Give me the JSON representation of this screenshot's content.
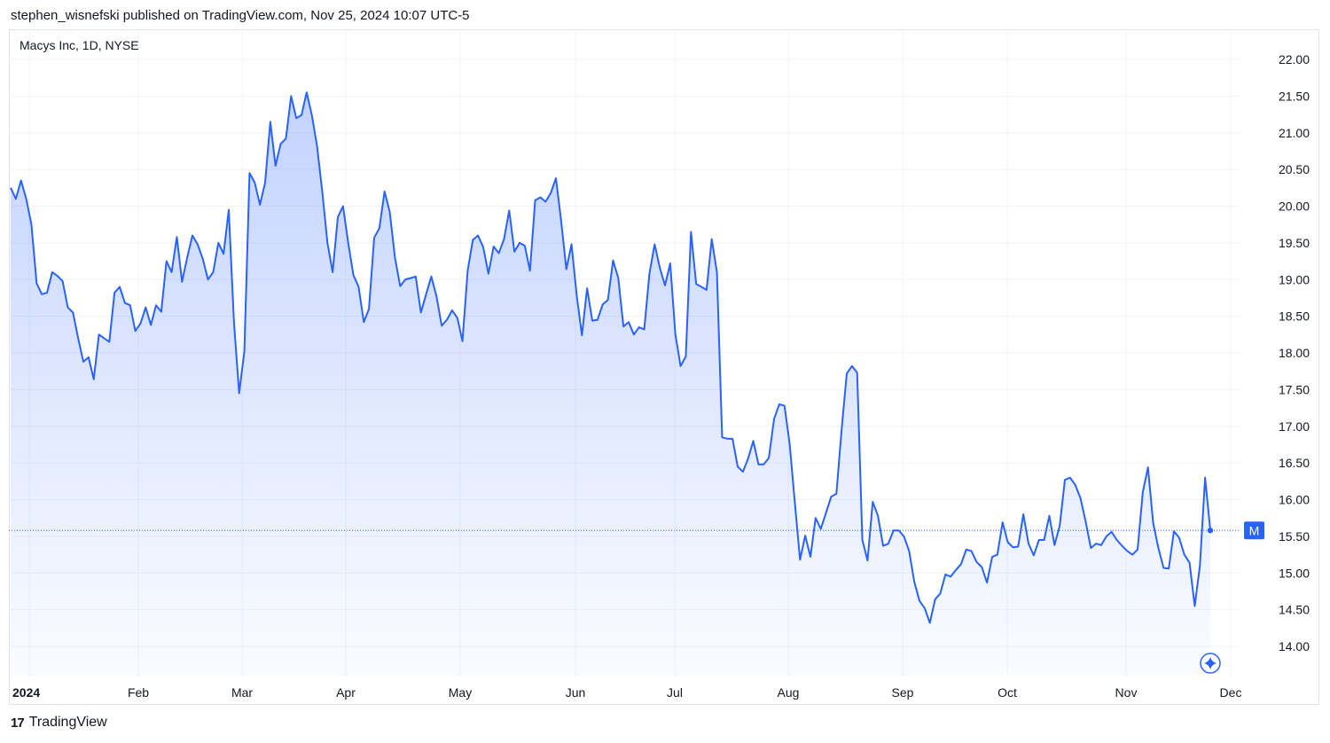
{
  "header": {
    "published": "stephen_wisnefski published on TradingView.com, Nov 25, 2024 10:07 UTC-5"
  },
  "symbol": {
    "label": "Macys Inc, 1D, NYSE"
  },
  "footer": {
    "brand": "TradingView",
    "logo_glyph": "17"
  },
  "colors": {
    "line": "#2962ff",
    "grid": "#f0f3fa",
    "lastline": "#2962ff",
    "badge": "#2962ff"
  },
  "icons": {
    "ai": "sparkle-icon",
    "logo": "tradingview-logo-icon"
  },
  "chart_data": {
    "type": "area",
    "y_ticks": [
      "22.00",
      "21.50",
      "21.00",
      "20.50",
      "20.00",
      "19.50",
      "19.00",
      "18.50",
      "18.00",
      "17.50",
      "17.00",
      "16.50",
      "16.00",
      "15.50",
      "15.00",
      "14.50",
      "14.00"
    ],
    "x_labels": [
      "2024",
      "Feb",
      "Mar",
      "Apr",
      "May",
      "Jun",
      "Jul",
      "Aug",
      "Sep",
      "Oct",
      "Nov",
      "Dec"
    ],
    "ylim": [
      13.75,
      22.35
    ],
    "last_value_badge": "M",
    "last_value": 15.58,
    "series": [
      {
        "values": [
          20.25,
          20.1,
          20.35,
          20.1,
          19.75,
          18.95,
          18.8,
          18.82,
          19.1,
          19.05,
          18.98,
          18.62,
          18.55,
          18.2,
          17.88,
          17.94,
          17.64,
          18.25,
          18.2,
          18.15,
          18.82,
          18.9,
          18.68,
          18.65,
          18.3,
          18.4,
          18.62,
          18.38,
          18.65,
          18.56,
          19.25,
          19.1,
          19.58,
          18.97,
          19.3,
          19.6,
          19.48,
          19.28,
          19.0,
          19.1,
          19.5,
          19.35,
          19.95,
          18.42,
          17.45,
          18.02,
          20.45,
          20.32,
          20.02,
          20.32,
          21.15,
          20.55,
          20.85,
          20.92,
          21.5,
          21.2,
          21.24,
          21.55,
          21.24,
          20.82,
          20.2,
          19.5,
          19.1,
          19.85,
          20.0,
          19.5,
          19.06,
          18.9,
          18.42,
          18.6,
          19.57,
          19.7,
          20.2,
          19.92,
          19.3,
          18.91,
          19.0,
          19.02,
          19.04,
          18.55,
          18.8,
          19.04,
          18.77,
          18.37,
          18.45,
          18.58,
          18.48,
          18.16,
          19.12,
          19.54,
          19.6,
          19.44,
          19.08,
          19.45,
          19.36,
          19.55,
          19.94,
          19.38,
          19.5,
          19.46,
          19.12,
          20.08,
          20.12,
          20.06,
          20.18,
          20.38,
          19.8,
          19.14,
          19.48,
          18.78,
          18.24,
          18.88,
          18.44,
          18.45,
          18.66,
          18.72,
          19.26,
          19.02,
          18.36,
          18.42,
          18.25,
          18.35,
          18.32,
          19.08,
          19.48,
          19.16,
          18.92,
          19.22,
          18.25,
          17.82,
          17.95,
          19.65,
          18.94,
          18.9,
          18.86,
          19.55,
          19.1,
          16.85,
          16.83,
          16.83,
          16.45,
          16.38,
          16.56,
          16.8,
          16.48,
          16.48,
          16.57,
          17.1,
          17.3,
          17.28,
          16.76,
          15.96,
          15.18,
          15.51,
          15.22,
          15.75,
          15.6,
          15.82,
          16.04,
          16.08,
          16.95,
          17.72,
          17.82,
          17.73,
          15.45,
          15.17,
          15.97,
          15.78,
          15.37,
          15.4,
          15.58,
          15.58,
          15.5,
          15.3,
          14.88,
          14.62,
          14.52,
          14.32,
          14.64,
          14.72,
          14.98,
          14.95,
          15.04,
          15.12,
          15.32,
          15.3,
          15.15,
          15.08,
          14.87,
          15.22,
          15.25,
          15.69,
          15.42,
          15.35,
          15.36,
          15.8,
          15.4,
          15.24,
          15.45,
          15.45,
          15.78,
          15.38,
          15.64,
          16.27,
          16.3,
          16.2,
          16.02,
          15.7,
          15.34,
          15.4,
          15.38,
          15.5,
          15.56,
          15.45,
          15.37,
          15.3,
          15.25,
          15.32,
          16.1,
          16.44,
          15.68,
          15.34,
          15.07,
          15.06,
          15.57,
          15.48,
          15.25,
          15.14,
          14.55,
          15.1,
          16.3,
          15.58
        ]
      }
    ]
  }
}
